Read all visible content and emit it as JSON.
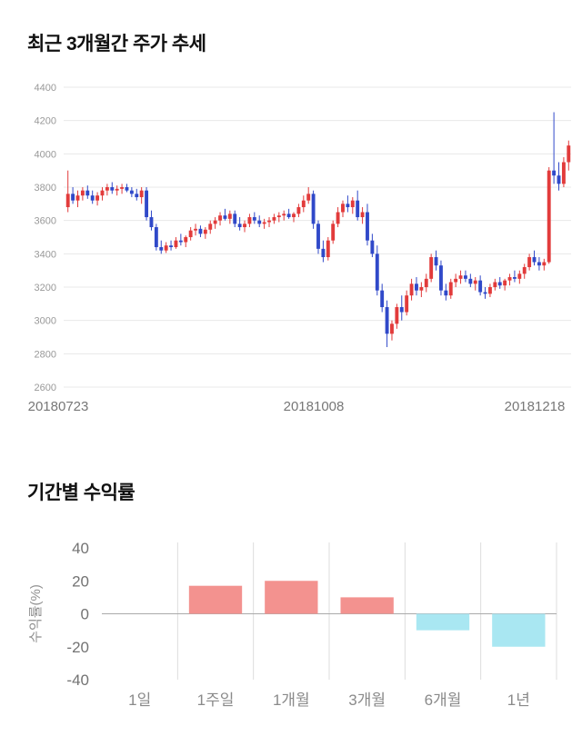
{
  "page": {
    "price_chart_title": "최근 3개월간 주가 추세",
    "returns_chart_title": "기간별 수익률"
  },
  "chart_data": [
    {
      "type": "candlestick",
      "title": "최근 3개월간 주가 추세",
      "ylim": [
        2600,
        4400
      ],
      "yticks": [
        2600,
        2800,
        3000,
        3200,
        3400,
        3600,
        3800,
        4000,
        4200,
        4400
      ],
      "x_labels": [
        "20180723",
        "20181008",
        "20181218"
      ],
      "up_color": "#e23b3b",
      "down_color": "#3049c9",
      "grid_color": "#e8e8e8",
      "axis_text_color": "#999999",
      "date_text_color": "#777777",
      "candles": [
        [
          3680,
          3900,
          3650,
          3760
        ],
        [
          3760,
          3800,
          3700,
          3720
        ],
        [
          3720,
          3780,
          3680,
          3750
        ],
        [
          3750,
          3800,
          3720,
          3780
        ],
        [
          3780,
          3810,
          3730,
          3750
        ],
        [
          3750,
          3780,
          3700,
          3720
        ],
        [
          3720,
          3770,
          3690,
          3750
        ],
        [
          3750,
          3800,
          3720,
          3780
        ],
        [
          3780,
          3820,
          3750,
          3800
        ],
        [
          3800,
          3830,
          3760,
          3780
        ],
        [
          3780,
          3810,
          3750,
          3790
        ],
        [
          3790,
          3820,
          3760,
          3800
        ],
        [
          3800,
          3820,
          3770,
          3780
        ],
        [
          3780,
          3800,
          3740,
          3760
        ],
        [
          3760,
          3790,
          3720,
          3740
        ],
        [
          3740,
          3800,
          3700,
          3780
        ],
        [
          3780,
          3800,
          3600,
          3620
        ],
        [
          3620,
          3660,
          3540,
          3560
        ],
        [
          3560,
          3580,
          3420,
          3440
        ],
        [
          3440,
          3480,
          3400,
          3420
        ],
        [
          3420,
          3470,
          3405,
          3450
        ],
        [
          3450,
          3480,
          3420,
          3440
        ],
        [
          3440,
          3500,
          3430,
          3480
        ],
        [
          3480,
          3520,
          3450,
          3470
        ],
        [
          3470,
          3510,
          3440,
          3500
        ],
        [
          3500,
          3560,
          3480,
          3540
        ],
        [
          3540,
          3580,
          3510,
          3550
        ],
        [
          3550,
          3570,
          3500,
          3520
        ],
        [
          3520,
          3560,
          3490,
          3545
        ],
        [
          3545,
          3600,
          3520,
          3580
        ],
        [
          3580,
          3620,
          3550,
          3600
        ],
        [
          3600,
          3650,
          3570,
          3630
        ],
        [
          3630,
          3670,
          3600,
          3610
        ],
        [
          3610,
          3660,
          3580,
          3640
        ],
        [
          3640,
          3660,
          3560,
          3580
        ],
        [
          3580,
          3620,
          3540,
          3560
        ],
        [
          3560,
          3600,
          3530,
          3580
        ],
        [
          3580,
          3640,
          3560,
          3620
        ],
        [
          3620,
          3650,
          3580,
          3600
        ],
        [
          3600,
          3630,
          3560,
          3580
        ],
        [
          3580,
          3610,
          3550,
          3590
        ],
        [
          3590,
          3620,
          3560,
          3600
        ],
        [
          3600,
          3640,
          3580,
          3620
        ],
        [
          3620,
          3650,
          3590,
          3630
        ],
        [
          3630,
          3660,
          3600,
          3640
        ],
        [
          3640,
          3670,
          3610,
          3620
        ],
        [
          3620,
          3650,
          3590,
          3640
        ],
        [
          3640,
          3700,
          3620,
          3680
        ],
        [
          3680,
          3750,
          3650,
          3720
        ],
        [
          3720,
          3800,
          3700,
          3760
        ],
        [
          3760,
          3780,
          3550,
          3580
        ],
        [
          3580,
          3600,
          3400,
          3430
        ],
        [
          3430,
          3480,
          3350,
          3380
        ],
        [
          3380,
          3500,
          3360,
          3480
        ],
        [
          3480,
          3600,
          3460,
          3580
        ],
        [
          3580,
          3680,
          3560,
          3650
        ],
        [
          3650,
          3720,
          3620,
          3700
        ],
        [
          3700,
          3750,
          3650,
          3680
        ],
        [
          3680,
          3740,
          3640,
          3720
        ],
        [
          3720,
          3780,
          3600,
          3620
        ],
        [
          3620,
          3680,
          3580,
          3650
        ],
        [
          3650,
          3700,
          3450,
          3480
        ],
        [
          3480,
          3520,
          3380,
          3400
        ],
        [
          3400,
          3450,
          3150,
          3180
        ],
        [
          3180,
          3220,
          3050,
          3080
        ],
        [
          3080,
          3120,
          2840,
          2920
        ],
        [
          2920,
          3000,
          2880,
          2980
        ],
        [
          2980,
          3100,
          2950,
          3080
        ],
        [
          3080,
          3150,
          3000,
          3050
        ],
        [
          3050,
          3180,
          3030,
          3150
        ],
        [
          3150,
          3250,
          3120,
          3220
        ],
        [
          3220,
          3260,
          3150,
          3180
        ],
        [
          3180,
          3230,
          3140,
          3200
        ],
        [
          3200,
          3280,
          3170,
          3250
        ],
        [
          3250,
          3400,
          3230,
          3380
        ],
        [
          3380,
          3420,
          3300,
          3330
        ],
        [
          3330,
          3360,
          3150,
          3180
        ],
        [
          3180,
          3220,
          3120,
          3150
        ],
        [
          3150,
          3250,
          3130,
          3230
        ],
        [
          3230,
          3280,
          3200,
          3250
        ],
        [
          3250,
          3300,
          3220,
          3270
        ],
        [
          3270,
          3300,
          3230,
          3250
        ],
        [
          3250,
          3280,
          3200,
          3220
        ],
        [
          3220,
          3260,
          3180,
          3240
        ],
        [
          3240,
          3270,
          3150,
          3170
        ],
        [
          3170,
          3200,
          3130,
          3160
        ],
        [
          3160,
          3220,
          3140,
          3200
        ],
        [
          3200,
          3250,
          3180,
          3230
        ],
        [
          3230,
          3260,
          3190,
          3210
        ],
        [
          3210,
          3250,
          3180,
          3240
        ],
        [
          3240,
          3280,
          3210,
          3260
        ],
        [
          3260,
          3300,
          3230,
          3250
        ],
        [
          3250,
          3300,
          3220,
          3280
        ],
        [
          3280,
          3340,
          3250,
          3320
        ],
        [
          3320,
          3400,
          3300,
          3380
        ],
        [
          3380,
          3420,
          3330,
          3350
        ],
        [
          3350,
          3380,
          3300,
          3330
        ],
        [
          3330,
          3370,
          3300,
          3350
        ],
        [
          3350,
          3920,
          3340,
          3900
        ],
        [
          3900,
          4250,
          3820,
          3870
        ],
        [
          3870,
          3950,
          3780,
          3820
        ],
        [
          3820,
          3980,
          3800,
          3950
        ],
        [
          3950,
          4080,
          3900,
          4050
        ]
      ]
    },
    {
      "type": "bar",
      "title": "기간별 수익률",
      "ylabel": "수익률(%)",
      "categories": [
        "1일",
        "1주일",
        "1개월",
        "3개월",
        "6개월",
        "1년"
      ],
      "values": [
        0,
        17,
        20,
        10,
        -10,
        -20
      ],
      "ylim": [
        -40,
        40
      ],
      "yticks": [
        40,
        20,
        0,
        -20,
        -40
      ],
      "positive_color": "#f3928f",
      "negative_color": "#a9e7f2",
      "grid_color": "#dddddd",
      "zero_line_color": "#aaaaaa",
      "axis_text_color": "#737373",
      "category_text_color": "#8a8a8a",
      "ylabel_color": "#909090"
    }
  ]
}
